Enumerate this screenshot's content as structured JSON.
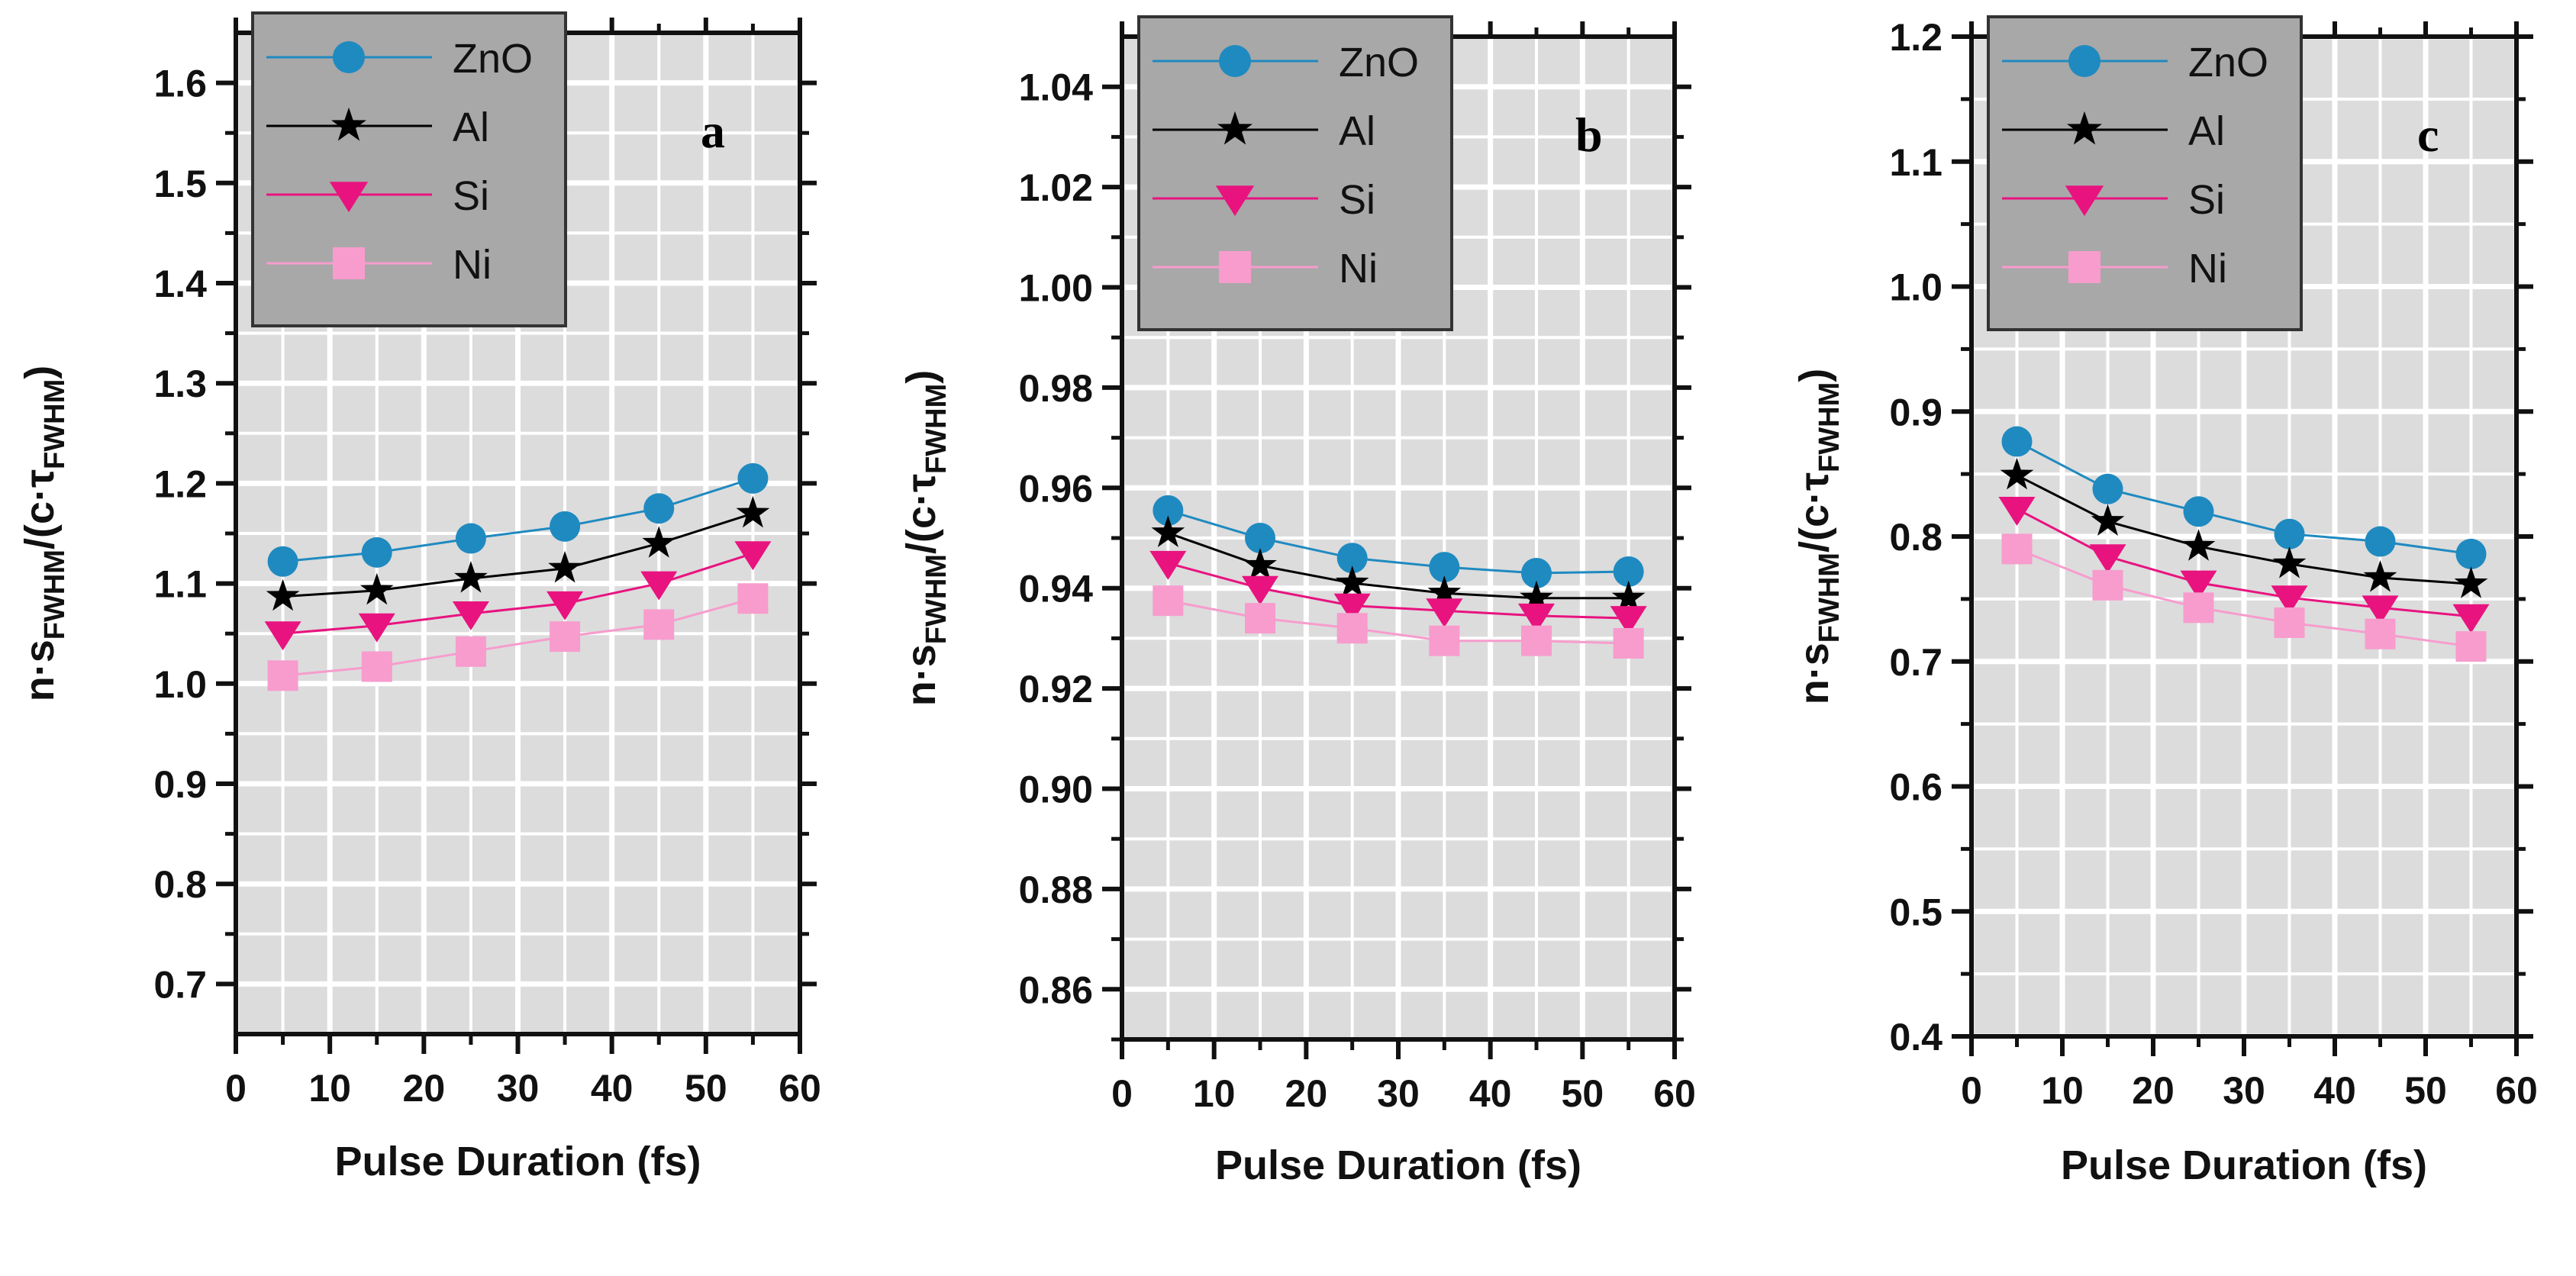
{
  "chart_data": [
    {
      "type": "line",
      "panel_label": "a",
      "xlabel": "Pulse Duration (fs)",
      "ylabel": {
        "main": "n·s",
        "sub1": "FWHM",
        "mid": "/(c·τ",
        "sub2": "FWHM",
        "end": ")"
      },
      "xlim": [
        0,
        60
      ],
      "ylim": [
        0.65,
        1.65
      ],
      "xticks": [
        0,
        10,
        20,
        30,
        40,
        50,
        60
      ],
      "yticks": [
        0.7,
        0.8,
        0.9,
        1.0,
        1.1,
        1.2,
        1.3,
        1.4,
        1.5,
        1.6
      ],
      "ytick_labels": [
        "0.7",
        "0.8",
        "0.9",
        "1.0",
        "1.1",
        "1.2",
        "1.3",
        "1.4",
        "1.5",
        "1.6"
      ],
      "grid": true,
      "legend_position": "top-left",
      "x": [
        5,
        15,
        25,
        35,
        45,
        55
      ],
      "series": [
        {
          "name": "ZnO",
          "values": [
            1.122,
            1.131,
            1.145,
            1.157,
            1.175,
            1.205
          ]
        },
        {
          "name": "Al",
          "values": [
            1.087,
            1.093,
            1.105,
            1.115,
            1.14,
            1.17
          ]
        },
        {
          "name": "Si",
          "values": [
            1.05,
            1.058,
            1.07,
            1.08,
            1.1,
            1.13
          ]
        },
        {
          "name": "Ni",
          "values": [
            1.008,
            1.017,
            1.032,
            1.047,
            1.059,
            1.085
          ]
        }
      ]
    },
    {
      "type": "line",
      "panel_label": "b",
      "xlabel": "Pulse Duration (fs)",
      "ylabel": {
        "main": "n·s",
        "sub1": "FWHM",
        "mid": "/(c·τ",
        "sub2": "FWHM",
        "end": ")"
      },
      "xlim": [
        0,
        60
      ],
      "ylim": [
        0.85,
        1.05
      ],
      "xticks": [
        0,
        10,
        20,
        30,
        40,
        50,
        60
      ],
      "yticks": [
        0.86,
        0.88,
        0.9,
        0.92,
        0.94,
        0.96,
        0.98,
        1.0,
        1.02,
        1.04
      ],
      "ytick_labels": [
        "0.86",
        "0.88",
        "0.90",
        "0.92",
        "0.94",
        "0.96",
        "0.98",
        "1.00",
        "1.02",
        "1.04"
      ],
      "grid": true,
      "legend_position": "top-left",
      "x": [
        5,
        15,
        25,
        35,
        45,
        55
      ],
      "series": [
        {
          "name": "ZnO",
          "values": [
            0.9555,
            0.95,
            0.946,
            0.9442,
            0.943,
            0.9433
          ]
        },
        {
          "name": "Al",
          "values": [
            0.951,
            0.9445,
            0.941,
            0.939,
            0.938,
            0.938
          ]
        },
        {
          "name": "Si",
          "values": [
            0.945,
            0.94,
            0.9365,
            0.9355,
            0.9345,
            0.934
          ]
        },
        {
          "name": "Ni",
          "values": [
            0.9375,
            0.934,
            0.932,
            0.9295,
            0.9295,
            0.929
          ]
        }
      ]
    },
    {
      "type": "line",
      "panel_label": "c",
      "xlabel": "Pulse Duration (fs)",
      "ylabel": {
        "main": "n·s",
        "sub1": "FWHM",
        "mid": "/(c·τ",
        "sub2": "FWHM",
        "end": ")"
      },
      "xlim": [
        0,
        60
      ],
      "ylim": [
        0.4,
        1.2
      ],
      "xticks": [
        0,
        10,
        20,
        30,
        40,
        50,
        60
      ],
      "yticks": [
        0.4,
        0.5,
        0.6,
        0.7,
        0.8,
        0.9,
        1.0,
        1.1,
        1.2
      ],
      "ytick_labels": [
        "0.4",
        "0.5",
        "0.6",
        "0.7",
        "0.8",
        "0.9",
        "1.0",
        "1.1",
        "1.2"
      ],
      "grid": true,
      "legend_position": "top-left",
      "x": [
        5,
        15,
        25,
        35,
        45,
        55
      ],
      "series": [
        {
          "name": "ZnO",
          "values": [
            0.876,
            0.838,
            0.82,
            0.802,
            0.796,
            0.786
          ]
        },
        {
          "name": "Al",
          "values": [
            0.849,
            0.812,
            0.792,
            0.778,
            0.767,
            0.762
          ]
        },
        {
          "name": "Si",
          "values": [
            0.822,
            0.784,
            0.763,
            0.751,
            0.743,
            0.736
          ]
        },
        {
          "name": "Ni",
          "values": [
            0.79,
            0.761,
            0.743,
            0.731,
            0.722,
            0.712
          ]
        }
      ]
    }
  ],
  "styles": {
    "ZnO": {
      "color": "#1f8ac0",
      "marker": "circle"
    },
    "Al": {
      "color": "#000000",
      "marker": "star"
    },
    "Si": {
      "color": "#e8137f",
      "marker": "triangle-down"
    },
    "Ni": {
      "color": "#f79ccd",
      "marker": "square"
    },
    "plot_bg": "#dcdcdc",
    "legend_bg": "#a8a8a8"
  }
}
